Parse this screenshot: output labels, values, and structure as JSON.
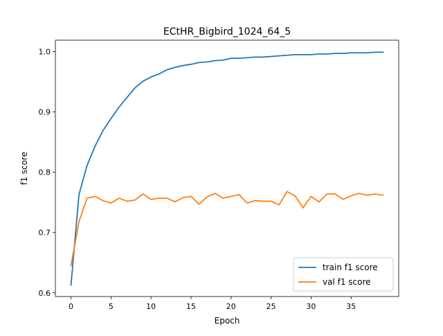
{
  "chart_data": {
    "type": "line",
    "title": "ECtHR_Bigbird_1024_64_5",
    "xlabel": "Epoch",
    "ylabel": "f1 score",
    "xlim": [
      -1.95,
      40.95
    ],
    "ylim": [
      0.594,
      1.019
    ],
    "xticks": [
      0,
      5,
      10,
      15,
      20,
      25,
      30,
      35
    ],
    "yticks": [
      0.6,
      0.7,
      0.8,
      0.9,
      1.0
    ],
    "xtick_labels": [
      "0",
      "5",
      "10",
      "15",
      "20",
      "25",
      "30",
      "35"
    ],
    "ytick_labels": [
      "0.6",
      "0.7",
      "0.8",
      "0.9",
      "1.0"
    ],
    "grid": false,
    "legend_position": "lower-right",
    "x": [
      0,
      1,
      2,
      3,
      4,
      5,
      6,
      7,
      8,
      9,
      10,
      11,
      12,
      13,
      14,
      15,
      16,
      17,
      18,
      19,
      20,
      21,
      22,
      23,
      24,
      25,
      26,
      27,
      28,
      29,
      30,
      31,
      32,
      33,
      34,
      35,
      36,
      37,
      38,
      39
    ],
    "series": [
      {
        "name": "train f1 score",
        "color": "#1f77b4",
        "values": [
          0.613,
          0.763,
          0.811,
          0.843,
          0.869,
          0.889,
          0.908,
          0.924,
          0.94,
          0.951,
          0.958,
          0.963,
          0.97,
          0.974,
          0.977,
          0.979,
          0.982,
          0.983,
          0.985,
          0.986,
          0.989,
          0.989,
          0.99,
          0.991,
          0.991,
          0.992,
          0.993,
          0.994,
          0.995,
          0.995,
          0.995,
          0.996,
          0.996,
          0.997,
          0.997,
          0.998,
          0.998,
          0.998,
          0.999,
          0.999
        ]
      },
      {
        "name": "val f1 score",
        "color": "#ff7f0e",
        "values": [
          0.645,
          0.718,
          0.757,
          0.76,
          0.753,
          0.749,
          0.757,
          0.752,
          0.754,
          0.764,
          0.755,
          0.757,
          0.757,
          0.751,
          0.758,
          0.76,
          0.747,
          0.759,
          0.765,
          0.757,
          0.76,
          0.763,
          0.749,
          0.753,
          0.752,
          0.752,
          0.746,
          0.768,
          0.761,
          0.741,
          0.76,
          0.751,
          0.764,
          0.764,
          0.755,
          0.761,
          0.765,
          0.762,
          0.764,
          0.762
        ]
      }
    ]
  }
}
